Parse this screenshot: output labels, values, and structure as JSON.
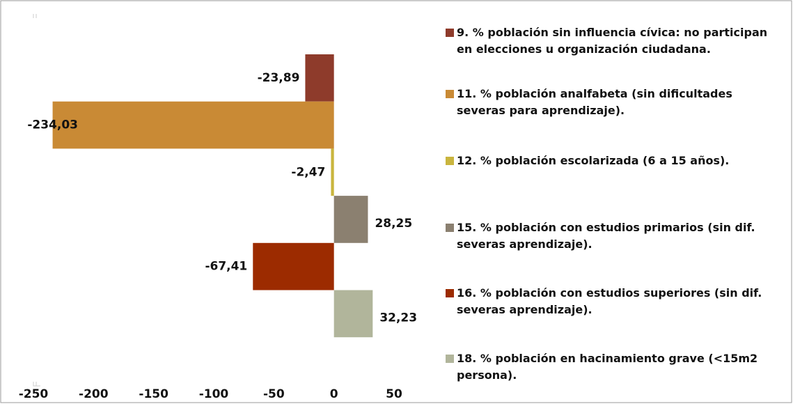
{
  "chart_data": {
    "type": "bar",
    "orientation": "horizontal",
    "xlim": [
      -250,
      50
    ],
    "xticks": [
      -250,
      -200,
      -150,
      -100,
      -50,
      0,
      50
    ],
    "grid": false,
    "legend": "right",
    "series": [
      {
        "name": "9. % población sin influencia cívica: no participan en elecciones u organización ciudadana.",
        "color": "#8e3b2b",
        "values": [
          -23.89
        ],
        "value_labels": [
          "-23,89"
        ]
      },
      {
        "name": "11. % población analfabeta (sin dificultades severas para aprendizaje).",
        "color": "#c98a35",
        "values": [
          -234.03
        ],
        "value_labels": [
          "-234,03"
        ]
      },
      {
        "name": "12. % población escolarizada (6 a 15 años).",
        "color": "#c9b53e",
        "values": [
          -2.47
        ],
        "value_labels": [
          "-2,47"
        ]
      },
      {
        "name": "15. % población con estudios primarios (sin dif. severas aprendizaje).",
        "color": "#8b8070",
        "values": [
          28.25
        ],
        "value_labels": [
          "28,25"
        ]
      },
      {
        "name": "16. % población con estudios superiores (sin dif. severas aprendizaje).",
        "color": "#9c2b00",
        "values": [
          -67.41
        ],
        "value_labels": [
          "-67,41"
        ]
      },
      {
        "name": "18. % población en hacinamiento grave (<15m2 persona).",
        "color": "#b1b59b",
        "values": [
          32.23
        ],
        "value_labels": [
          "32,23"
        ]
      }
    ]
  }
}
